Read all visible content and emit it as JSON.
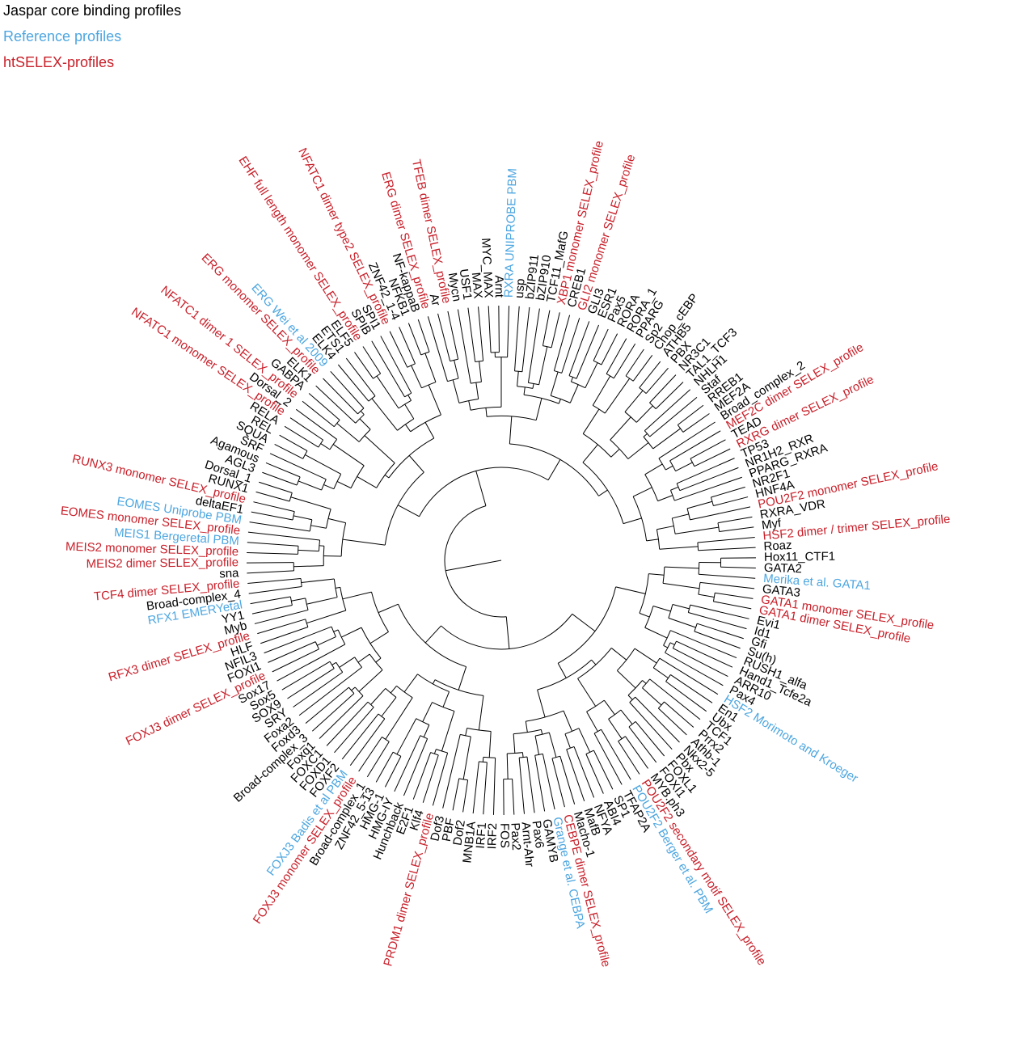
{
  "legend": [
    {
      "label": "Jaspar core binding profiles",
      "group": "jaspar"
    },
    {
      "label": "Reference profiles",
      "group": "reference"
    },
    {
      "label": "htSELEX-profiles",
      "group": "htselex"
    }
  ],
  "leaves": [
    {
      "label": "Hox11_CTF1",
      "group": "jaspar"
    },
    {
      "label": "GATA2",
      "group": "jaspar"
    },
    {
      "label": "Merika et al. GATA1",
      "group": "reference"
    },
    {
      "label": "GATA3",
      "group": "jaspar"
    },
    {
      "label": "GATA1 monomer SELEX_profile",
      "group": "htselex"
    },
    {
      "label": "GATA1 dimer SELEX_profile",
      "group": "htselex"
    },
    {
      "label": "Evi1",
      "group": "jaspar"
    },
    {
      "label": "Id1",
      "group": "jaspar"
    },
    {
      "label": "Gfi",
      "group": "jaspar"
    },
    {
      "label": "Su(h)",
      "group": "jaspar"
    },
    {
      "label": "RUSH1_alfa",
      "group": "jaspar"
    },
    {
      "label": "Hand1_Tcfe2a",
      "group": "jaspar"
    },
    {
      "label": "ARR10",
      "group": "jaspar"
    },
    {
      "label": "Pax4",
      "group": "jaspar"
    },
    {
      "label": "HSF2 Morimoto and Kroeger",
      "group": "reference"
    },
    {
      "label": "En1",
      "group": "jaspar"
    },
    {
      "label": "Ubx",
      "group": "jaspar"
    },
    {
      "label": "TCF1",
      "group": "jaspar"
    },
    {
      "label": "Prrx2",
      "group": "jaspar"
    },
    {
      "label": "Athb-1",
      "group": "jaspar"
    },
    {
      "label": "Nkx2-5",
      "group": "jaspar"
    },
    {
      "label": "Pbx",
      "group": "jaspar"
    },
    {
      "label": "FOXL1",
      "group": "jaspar"
    },
    {
      "label": "FOXI1",
      "group": "jaspar"
    },
    {
      "label": "MYB.ph3",
      "group": "jaspar"
    },
    {
      "label": "POU2F2 secondary motif SELEX_profile",
      "group": "htselex"
    },
    {
      "label": "POU2F2 Berger et al. PBM",
      "group": "reference"
    },
    {
      "label": "TFAP2A",
      "group": "jaspar"
    },
    {
      "label": "SP1",
      "group": "jaspar"
    },
    {
      "label": "ABI4",
      "group": "jaspar"
    },
    {
      "label": "NFYA",
      "group": "jaspar"
    },
    {
      "label": "MafB",
      "group": "jaspar"
    },
    {
      "label": "Macho-1",
      "group": "jaspar"
    },
    {
      "label": "CEBPE dimer SELEX_profile",
      "group": "htselex"
    },
    {
      "label": "Grange et al. CEBPA",
      "group": "reference"
    },
    {
      "label": "GAMYB",
      "group": "jaspar"
    },
    {
      "label": "Pax6",
      "group": "jaspar"
    },
    {
      "label": "Arnt-Ahr",
      "group": "jaspar"
    },
    {
      "label": "Pax2",
      "group": "jaspar"
    },
    {
      "label": "FOS",
      "group": "jaspar"
    },
    {
      "label": "IRF2",
      "group": "jaspar"
    },
    {
      "label": "IRF1",
      "group": "jaspar"
    },
    {
      "label": "MNB1A",
      "group": "jaspar"
    },
    {
      "label": "Dof2",
      "group": "jaspar"
    },
    {
      "label": "PBF",
      "group": "jaspar"
    },
    {
      "label": "Dof3",
      "group": "jaspar"
    },
    {
      "label": "PRDM1 dimer SELEX_profile",
      "group": "htselex"
    },
    {
      "label": "Klf4",
      "group": "jaspar"
    },
    {
      "label": "E2F1",
      "group": "jaspar"
    },
    {
      "label": "Hunchback",
      "group": "jaspar"
    },
    {
      "label": "HMG-IY",
      "group": "jaspar"
    },
    {
      "label": "HMG-1",
      "group": "jaspar"
    },
    {
      "label": "ZNF42_5-13",
      "group": "jaspar"
    },
    {
      "label": "Broad-complex_1",
      "group": "jaspar"
    },
    {
      "label": "FOXJ3 monomer SELEX_profile",
      "group": "htselex"
    },
    {
      "label": "FOXJ3 Badis et al PBM",
      "group": "reference"
    },
    {
      "label": "FOXF2",
      "group": "jaspar"
    },
    {
      "label": "FOXD1",
      "group": "jaspar"
    },
    {
      "label": "FOXC1",
      "group": "jaspar"
    },
    {
      "label": "Foxq1",
      "group": "jaspar"
    },
    {
      "label": "Broad-complex_3",
      "group": "jaspar"
    },
    {
      "label": "Foxd3",
      "group": "jaspar"
    },
    {
      "label": "Foxa2",
      "group": "jaspar"
    },
    {
      "label": "SRY",
      "group": "jaspar"
    },
    {
      "label": "SOX9",
      "group": "jaspar"
    },
    {
      "label": "Sox5",
      "group": "jaspar"
    },
    {
      "label": "Sox17",
      "group": "jaspar"
    },
    {
      "label": "FOXJ3 dimer SELEX_profile",
      "group": "htselex"
    },
    {
      "label": "FOXI1",
      "group": "jaspar"
    },
    {
      "label": "NFIL3",
      "group": "jaspar"
    },
    {
      "label": "HLF",
      "group": "jaspar"
    },
    {
      "label": "RFX3 dimer SELEX_profile",
      "group": "htselex"
    },
    {
      "label": "Myb",
      "group": "jaspar"
    },
    {
      "label": "YY1",
      "group": "jaspar"
    },
    {
      "label": "RFX1 EMERYetal",
      "group": "reference"
    },
    {
      "label": "Broad-complex_4",
      "group": "jaspar"
    },
    {
      "label": "TCF4 dimer SELEX_profile",
      "group": "htselex"
    },
    {
      "label": "sna",
      "group": "jaspar"
    },
    {
      "label": "MEIS2 dimer SELEX_profile",
      "group": "htselex"
    },
    {
      "label": "MEIS2 monomer SELEX_profile",
      "group": "htselex"
    },
    {
      "label": "MEIS1 Bergeretal PBM",
      "group": "reference"
    },
    {
      "label": "EOMES monomer SELEX_profile",
      "group": "htselex"
    },
    {
      "label": "EOMES Uniprobe PBM",
      "group": "reference"
    },
    {
      "label": "deltaEF1",
      "group": "jaspar"
    },
    {
      "label": "RUNX3 monomer SELEX_profile",
      "group": "htselex"
    },
    {
      "label": "RUNX1",
      "group": "jaspar"
    },
    {
      "label": "Dorsal_1",
      "group": "jaspar"
    },
    {
      "label": "AGL3",
      "group": "jaspar"
    },
    {
      "label": "Agamous",
      "group": "jaspar"
    },
    {
      "label": "SRF",
      "group": "jaspar"
    },
    {
      "label": "SQUA",
      "group": "jaspar"
    },
    {
      "label": "REL",
      "group": "jaspar"
    },
    {
      "label": "RELA",
      "group": "jaspar"
    },
    {
      "label": "NFATC1 monomer SELEX_profile",
      "group": "htselex"
    },
    {
      "label": "Dorsal_2",
      "group": "jaspar"
    },
    {
      "label": "NFATC1 dimer 1 SELEX_profile",
      "group": "htselex"
    },
    {
      "label": "GABPA",
      "group": "jaspar"
    },
    {
      "label": "ELK1",
      "group": "jaspar"
    },
    {
      "label": "ERG monomer SELEX_profile",
      "group": "htselex"
    },
    {
      "label": "ERG Wei et al 2009",
      "group": "reference"
    },
    {
      "label": "ELK4",
      "group": "jaspar"
    },
    {
      "label": "ETS1",
      "group": "jaspar"
    },
    {
      "label": "ELF5",
      "group": "jaspar"
    },
    {
      "label": "EHF full length monomer SELEX_profile",
      "group": "htselex"
    },
    {
      "label": "SPIB",
      "group": "jaspar"
    },
    {
      "label": "SPI1",
      "group": "jaspar"
    },
    {
      "label": "NFATC1 dimer type2 SELEX_profile",
      "group": "htselex"
    },
    {
      "label": "ZNF42_1-4",
      "group": "jaspar"
    },
    {
      "label": "NFKB1",
      "group": "jaspar"
    },
    {
      "label": "NF-kappaB",
      "group": "jaspar"
    },
    {
      "label": "ERG dimer SELEX_profile",
      "group": "htselex"
    },
    {
      "label": "Ar",
      "group": "jaspar"
    },
    {
      "label": "TFEB dimer SELEX_profile",
      "group": "htselex"
    },
    {
      "label": "Mycn",
      "group": "jaspar"
    },
    {
      "label": "USF1",
      "group": "jaspar"
    },
    {
      "label": "MAX",
      "group": "jaspar"
    },
    {
      "label": "MYC_MAX",
      "group": "jaspar"
    },
    {
      "label": "Arnt",
      "group": "jaspar"
    },
    {
      "label": "RXRA UNIPROBE PBM",
      "group": "reference"
    },
    {
      "label": "usp",
      "group": "jaspar"
    },
    {
      "label": "bZIP911",
      "group": "jaspar"
    },
    {
      "label": "bZIP910",
      "group": "jaspar"
    },
    {
      "label": "TCF11_MafG",
      "group": "jaspar"
    },
    {
      "label": "XBP1 monomer SELEX_profile",
      "group": "htselex"
    },
    {
      "label": "CREB1",
      "group": "jaspar"
    },
    {
      "label": "GLI2 monomer SELEX_profile",
      "group": "htselex"
    },
    {
      "label": "GLI3",
      "group": "jaspar"
    },
    {
      "label": "ESR1",
      "group": "jaspar"
    },
    {
      "label": "Pax5",
      "group": "jaspar"
    },
    {
      "label": "RORA",
      "group": "jaspar"
    },
    {
      "label": "RORA_1",
      "group": "jaspar"
    },
    {
      "label": "PPARG",
      "group": "jaspar"
    },
    {
      "label": "Sp2",
      "group": "jaspar"
    },
    {
      "label": "Chop_cEBP",
      "group": "jaspar"
    },
    {
      "label": "ATHB5",
      "group": "jaspar"
    },
    {
      "label": "PBX",
      "group": "jaspar"
    },
    {
      "label": "NR3C1",
      "group": "jaspar"
    },
    {
      "label": "TAL1_TCF3",
      "group": "jaspar"
    },
    {
      "label": "NHLH1",
      "group": "jaspar"
    },
    {
      "label": "Staf",
      "group": "jaspar"
    },
    {
      "label": "RREB1",
      "group": "jaspar"
    },
    {
      "label": "MEF2A",
      "group": "jaspar"
    },
    {
      "label": "Broad_complex_2",
      "group": "jaspar"
    },
    {
      "label": "MEF2C dimer SELEX_profile",
      "group": "htselex"
    },
    {
      "label": "TEAD",
      "group": "jaspar"
    },
    {
      "label": "RXRG dimer SELEX_profile",
      "group": "htselex"
    },
    {
      "label": "TP53",
      "group": "jaspar"
    },
    {
      "label": "NR1H2_RXR",
      "group": "jaspar"
    },
    {
      "label": "PPARG_RXRA",
      "group": "jaspar"
    },
    {
      "label": "NR2F1",
      "group": "jaspar"
    },
    {
      "label": "HNF4A",
      "group": "jaspar"
    },
    {
      "label": "POU2F2 monomer SELEX_profile",
      "group": "htselex"
    },
    {
      "label": "RXRA_VDR",
      "group": "jaspar"
    },
    {
      "label": "Myf",
      "group": "jaspar"
    },
    {
      "label": "HSF2 dimer / trimer SELEX_profile",
      "group": "htselex"
    },
    {
      "label": "Roaz",
      "group": "jaspar"
    }
  ]
}
